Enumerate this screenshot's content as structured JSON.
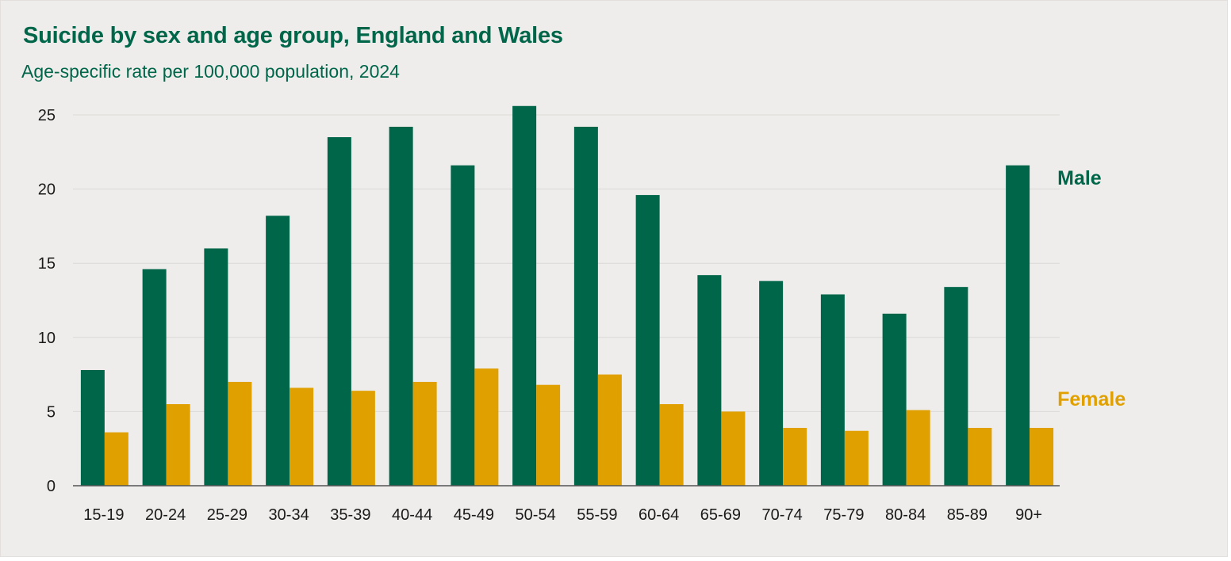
{
  "colors": {
    "background": "#efedeb",
    "male": "#00664a",
    "female": "#e0a000",
    "grid": "#dcdad7",
    "axis": "#555555"
  },
  "chart_data": {
    "type": "bar",
    "title": "Suicide by sex and age group, England and Wales",
    "subtitle": "Age-specific rate per 100,000 population, 2024",
    "xlabel": "",
    "ylabel": "",
    "ylim": [
      0,
      25
    ],
    "yticks": [
      0,
      5,
      10,
      15,
      20,
      25
    ],
    "grid": true,
    "legend": "direct labels at right",
    "categories": [
      "15-19",
      "20-24",
      "25-29",
      "30-34",
      "35-39",
      "40-44",
      "45-49",
      "50-54",
      "55-59",
      "60-64",
      "65-69",
      "70-74",
      "75-79",
      "80-84",
      "85-89",
      "90+"
    ],
    "series": [
      {
        "name": "Male",
        "color": "#00664a",
        "values": [
          7.8,
          14.6,
          16.0,
          18.2,
          23.5,
          24.2,
          21.6,
          25.6,
          24.2,
          19.6,
          14.2,
          13.8,
          12.9,
          11.6,
          13.4,
          21.6
        ]
      },
      {
        "name": "Female",
        "color": "#e0a000",
        "values": [
          3.6,
          5.5,
          7.0,
          6.6,
          6.4,
          7.0,
          7.9,
          6.8,
          7.5,
          5.5,
          5.0,
          3.9,
          3.7,
          5.1,
          3.9,
          3.9
        ]
      }
    ]
  }
}
